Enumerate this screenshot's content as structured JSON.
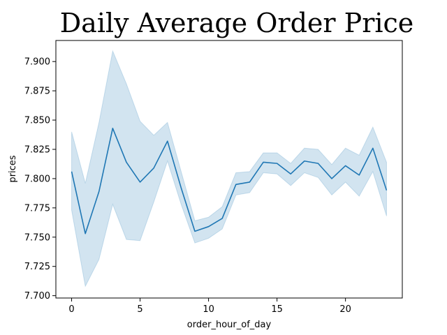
{
  "chart_data": {
    "type": "line",
    "title": "Daily Average Order Price",
    "xlabel": "order_hour_of_day",
    "ylabel": "prices",
    "xlim": [
      -1.15,
      24.15
    ],
    "ylim": [
      7.698,
      7.918
    ],
    "x_ticks": [
      0,
      5,
      10,
      15,
      20
    ],
    "x_tick_labels": [
      "0",
      "5",
      "10",
      "15",
      "20"
    ],
    "y_ticks": [
      7.7,
      7.725,
      7.75,
      7.775,
      7.8,
      7.825,
      7.85,
      7.875,
      7.9
    ],
    "y_tick_labels": [
      "7.700",
      "7.725",
      "7.750",
      "7.775",
      "7.800",
      "7.825",
      "7.850",
      "7.875",
      "7.900"
    ],
    "grid": false,
    "colors": {
      "line": "#1f77b4",
      "band": "#1f77b4"
    },
    "series": [
      {
        "x": [
          0,
          1,
          2,
          3,
          4,
          5,
          6,
          7,
          8,
          9,
          10,
          11,
          12,
          13,
          14,
          15,
          16,
          17,
          18,
          19,
          20,
          21,
          22,
          23
        ],
        "values": [
          7.806,
          7.753,
          7.789,
          7.843,
          7.814,
          7.797,
          7.809,
          7.832,
          7.792,
          7.755,
          7.759,
          7.766,
          7.795,
          7.797,
          7.814,
          7.813,
          7.804,
          7.815,
          7.813,
          7.8,
          7.811,
          7.803,
          7.826,
          7.79
        ],
        "lower": [
          7.773,
          7.708,
          7.731,
          7.778,
          7.748,
          7.747,
          7.78,
          7.815,
          7.778,
          7.745,
          7.749,
          7.757,
          7.786,
          7.788,
          7.805,
          7.804,
          7.794,
          7.805,
          7.801,
          7.786,
          7.797,
          7.785,
          7.806,
          7.768
        ],
        "upper": [
          7.84,
          7.796,
          7.848,
          7.909,
          7.881,
          7.849,
          7.837,
          7.848,
          7.806,
          7.764,
          7.767,
          7.776,
          7.805,
          7.806,
          7.822,
          7.822,
          7.813,
          7.826,
          7.825,
          7.812,
          7.826,
          7.82,
          7.844,
          7.814
        ]
      }
    ]
  }
}
